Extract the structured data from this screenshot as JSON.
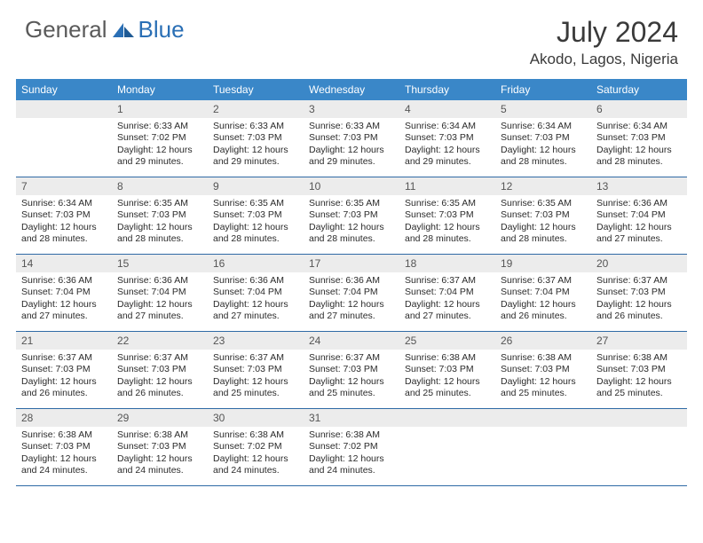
{
  "brand": {
    "part1": "General",
    "part2": "Blue"
  },
  "title": "July 2024",
  "location": "Akodo, Lagos, Nigeria",
  "colors": {
    "header_bg": "#3a87c8",
    "header_text": "#ffffff",
    "daynum_bg": "#ececec",
    "daynum_text": "#555555",
    "week_border": "#2f6aa5",
    "body_text": "#2b2b2b",
    "title_text": "#3a3a3a",
    "logo_gray": "#5a5a5a",
    "logo_blue": "#2a6fb5"
  },
  "dow": [
    "Sunday",
    "Monday",
    "Tuesday",
    "Wednesday",
    "Thursday",
    "Friday",
    "Saturday"
  ],
  "weeks": [
    [
      {
        "n": "",
        "sr": "",
        "ss": "",
        "dl": ""
      },
      {
        "n": "1",
        "sr": "6:33 AM",
        "ss": "7:02 PM",
        "dl": "12 hours and 29 minutes."
      },
      {
        "n": "2",
        "sr": "6:33 AM",
        "ss": "7:03 PM",
        "dl": "12 hours and 29 minutes."
      },
      {
        "n": "3",
        "sr": "6:33 AM",
        "ss": "7:03 PM",
        "dl": "12 hours and 29 minutes."
      },
      {
        "n": "4",
        "sr": "6:34 AM",
        "ss": "7:03 PM",
        "dl": "12 hours and 29 minutes."
      },
      {
        "n": "5",
        "sr": "6:34 AM",
        "ss": "7:03 PM",
        "dl": "12 hours and 28 minutes."
      },
      {
        "n": "6",
        "sr": "6:34 AM",
        "ss": "7:03 PM",
        "dl": "12 hours and 28 minutes."
      }
    ],
    [
      {
        "n": "7",
        "sr": "6:34 AM",
        "ss": "7:03 PM",
        "dl": "12 hours and 28 minutes."
      },
      {
        "n": "8",
        "sr": "6:35 AM",
        "ss": "7:03 PM",
        "dl": "12 hours and 28 minutes."
      },
      {
        "n": "9",
        "sr": "6:35 AM",
        "ss": "7:03 PM",
        "dl": "12 hours and 28 minutes."
      },
      {
        "n": "10",
        "sr": "6:35 AM",
        "ss": "7:03 PM",
        "dl": "12 hours and 28 minutes."
      },
      {
        "n": "11",
        "sr": "6:35 AM",
        "ss": "7:03 PM",
        "dl": "12 hours and 28 minutes."
      },
      {
        "n": "12",
        "sr": "6:35 AM",
        "ss": "7:03 PM",
        "dl": "12 hours and 28 minutes."
      },
      {
        "n": "13",
        "sr": "6:36 AM",
        "ss": "7:04 PM",
        "dl": "12 hours and 27 minutes."
      }
    ],
    [
      {
        "n": "14",
        "sr": "6:36 AM",
        "ss": "7:04 PM",
        "dl": "12 hours and 27 minutes."
      },
      {
        "n": "15",
        "sr": "6:36 AM",
        "ss": "7:04 PM",
        "dl": "12 hours and 27 minutes."
      },
      {
        "n": "16",
        "sr": "6:36 AM",
        "ss": "7:04 PM",
        "dl": "12 hours and 27 minutes."
      },
      {
        "n": "17",
        "sr": "6:36 AM",
        "ss": "7:04 PM",
        "dl": "12 hours and 27 minutes."
      },
      {
        "n": "18",
        "sr": "6:37 AM",
        "ss": "7:04 PM",
        "dl": "12 hours and 27 minutes."
      },
      {
        "n": "19",
        "sr": "6:37 AM",
        "ss": "7:04 PM",
        "dl": "12 hours and 26 minutes."
      },
      {
        "n": "20",
        "sr": "6:37 AM",
        "ss": "7:03 PM",
        "dl": "12 hours and 26 minutes."
      }
    ],
    [
      {
        "n": "21",
        "sr": "6:37 AM",
        "ss": "7:03 PM",
        "dl": "12 hours and 26 minutes."
      },
      {
        "n": "22",
        "sr": "6:37 AM",
        "ss": "7:03 PM",
        "dl": "12 hours and 26 minutes."
      },
      {
        "n": "23",
        "sr": "6:37 AM",
        "ss": "7:03 PM",
        "dl": "12 hours and 25 minutes."
      },
      {
        "n": "24",
        "sr": "6:37 AM",
        "ss": "7:03 PM",
        "dl": "12 hours and 25 minutes."
      },
      {
        "n": "25",
        "sr": "6:38 AM",
        "ss": "7:03 PM",
        "dl": "12 hours and 25 minutes."
      },
      {
        "n": "26",
        "sr": "6:38 AM",
        "ss": "7:03 PM",
        "dl": "12 hours and 25 minutes."
      },
      {
        "n": "27",
        "sr": "6:38 AM",
        "ss": "7:03 PM",
        "dl": "12 hours and 25 minutes."
      }
    ],
    [
      {
        "n": "28",
        "sr": "6:38 AM",
        "ss": "7:03 PM",
        "dl": "12 hours and 24 minutes."
      },
      {
        "n": "29",
        "sr": "6:38 AM",
        "ss": "7:03 PM",
        "dl": "12 hours and 24 minutes."
      },
      {
        "n": "30",
        "sr": "6:38 AM",
        "ss": "7:02 PM",
        "dl": "12 hours and 24 minutes."
      },
      {
        "n": "31",
        "sr": "6:38 AM",
        "ss": "7:02 PM",
        "dl": "12 hours and 24 minutes."
      },
      {
        "n": "",
        "sr": "",
        "ss": "",
        "dl": ""
      },
      {
        "n": "",
        "sr": "",
        "ss": "",
        "dl": ""
      },
      {
        "n": "",
        "sr": "",
        "ss": "",
        "dl": ""
      }
    ]
  ],
  "labels": {
    "sunrise": "Sunrise:",
    "sunset": "Sunset:",
    "daylight": "Daylight:"
  }
}
